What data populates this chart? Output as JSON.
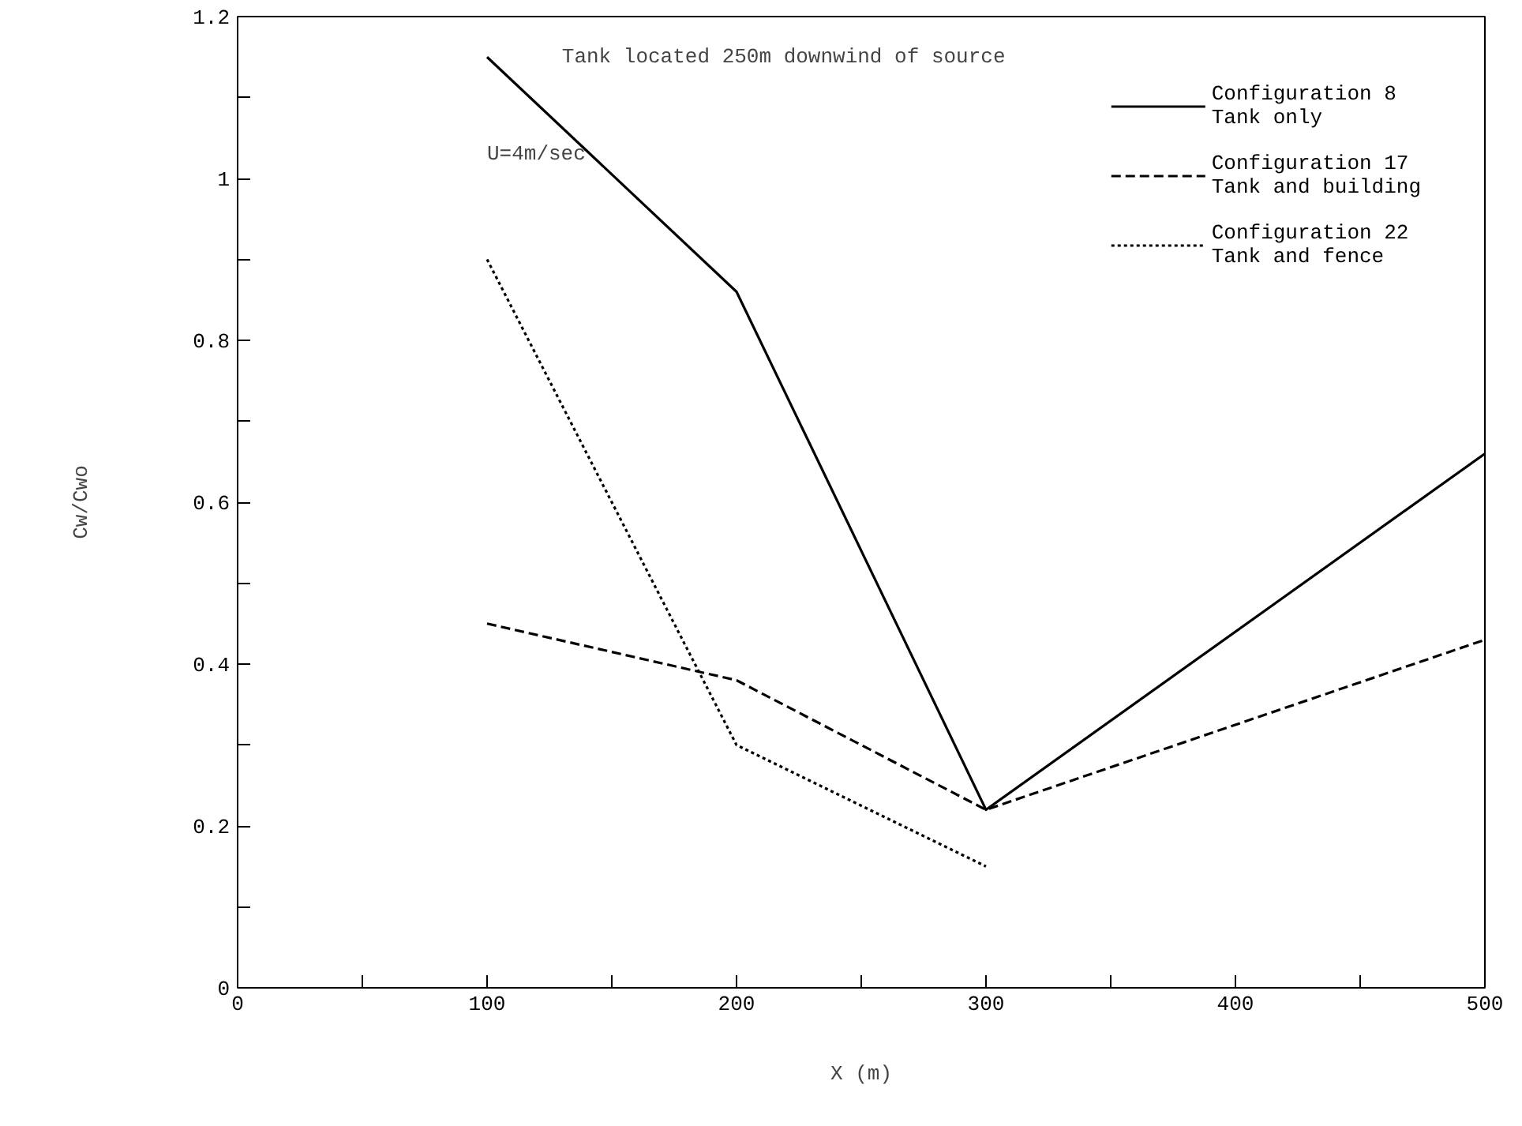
{
  "chart_data": {
    "type": "line",
    "xlabel": "X (m)",
    "ylabel": "Cw/Cwo",
    "annotations": [
      "Tank located 250m downwind of source",
      "U=4m/sec"
    ],
    "x": [
      100,
      200,
      300,
      500
    ],
    "series": [
      {
        "name": "Configuration 8\nTank only",
        "color": "#000000",
        "line_style": "solid",
        "values": [
          1.15,
          0.86,
          0.22,
          0.66
        ]
      },
      {
        "name": "Configuration 17\nTank and building",
        "color": "#000000",
        "line_style": "dashed",
        "values": [
          0.45,
          0.38,
          0.22,
          0.43
        ]
      },
      {
        "name": "Configuration 22\nTank and fence",
        "color": "#000000",
        "line_style": "dotted",
        "x": [
          100,
          200,
          300
        ],
        "values": [
          0.9,
          0.3,
          0.15
        ]
      }
    ],
    "xlim": [
      0,
      500
    ],
    "ylim": [
      0,
      1.2
    ],
    "xticks": [
      0,
      {
        "value": 50,
        "label": null
      },
      100,
      {
        "value": 150,
        "label": null
      },
      200,
      {
        "value": 250,
        "label": null
      },
      300,
      {
        "value": 350,
        "label": null
      },
      400,
      {
        "value": 450,
        "label": null
      },
      500
    ],
    "yticks": [
      0,
      {
        "value": 0.1,
        "label": null
      },
      0.2,
      {
        "value": 0.3,
        "label": null
      },
      0.4,
      {
        "value": 0.5,
        "label": null
      },
      0.6,
      {
        "value": 0.7,
        "label": null
      },
      0.8,
      {
        "value": 0.9,
        "label": null
      },
      1,
      {
        "value": 1.1,
        "label": null
      },
      1.2
    ],
    "grid": false,
    "legend": "top right",
    "marker": "none"
  }
}
